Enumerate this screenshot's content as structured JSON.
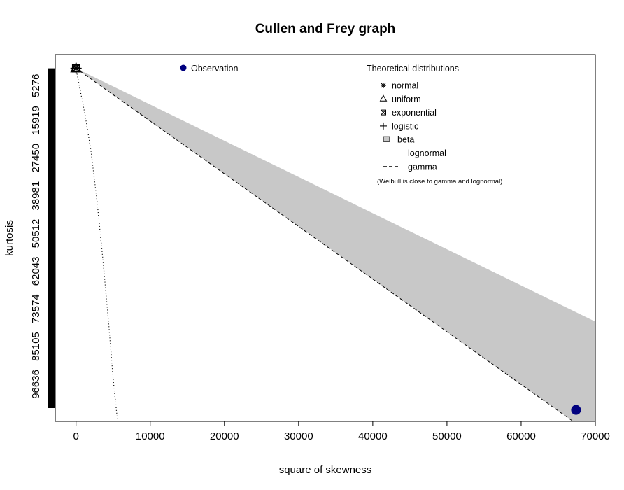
{
  "chart_data": {
    "type": "scatter",
    "title": "Cullen and Frey graph",
    "xlabel": "square of skewness",
    "ylabel": "kurtosis",
    "xlim": [
      -2800,
      70000
    ],
    "ylim": [
      -4200,
      108000
    ],
    "y_reversed": true,
    "x_ticks": [
      0,
      10000,
      20000,
      30000,
      40000,
      50000,
      60000,
      70000
    ],
    "x_tick_labels": [
      "0",
      "10000",
      "20000",
      "30000",
      "40000",
      "50000",
      "60000",
      "70000"
    ],
    "y_ticks": [
      5276,
      15919,
      27450,
      38981,
      50512,
      62043,
      73574,
      85105,
      96636
    ],
    "y_tick_labels": [
      "5276",
      "15919",
      "27450",
      "38981",
      "50512",
      "62043",
      "73574",
      "85105",
      "96636"
    ],
    "observation": {
      "x": 67400,
      "y": 104500,
      "color": "#00007f"
    },
    "bootstrap_band": {
      "x": 0,
      "y_from": 0,
      "y_to": 108000
    },
    "theoretical_points": [
      {
        "name": "normal",
        "x": 0,
        "y": 0
      },
      {
        "name": "uniform",
        "x": 0,
        "y": 0
      },
      {
        "name": "exponential",
        "x": 0,
        "y": 0
      },
      {
        "name": "logistic",
        "x": 0,
        "y": 0
      }
    ],
    "beta_region": {
      "color": "#c8c8c8",
      "polygon": [
        [
          0,
          0
        ],
        [
          70000,
          77500
        ],
        [
          70000,
          108000
        ],
        [
          67000,
          108000
        ]
      ]
    },
    "gamma_line": [
      [
        0,
        0
      ],
      [
        67000,
        108000
      ]
    ],
    "lognormal_curve": [
      [
        0,
        0
      ],
      [
        500,
        6000
      ],
      [
        1200,
        14000
      ],
      [
        2000,
        25000
      ],
      [
        2800,
        40000
      ],
      [
        3600,
        58000
      ],
      [
        4400,
        78000
      ],
      [
        5000,
        95000
      ],
      [
        5600,
        108000
      ]
    ],
    "legend_observation": {
      "label": "Observation",
      "position": "top-left"
    },
    "legend_theoretical": {
      "title": "Theoretical distributions",
      "position": "top-right",
      "items": [
        {
          "label": "normal",
          "symbol": "asterisk"
        },
        {
          "label": "uniform",
          "symbol": "triangle"
        },
        {
          "label": "exponential",
          "symbol": "boxed-x"
        },
        {
          "label": "logistic",
          "symbol": "plus"
        },
        {
          "label": "beta",
          "symbol": "gray-box"
        },
        {
          "label": "lognormal",
          "symbol": "dotted-line"
        },
        {
          "label": "gamma",
          "symbol": "dashed-line"
        }
      ],
      "note": "(Weibull is close to gamma and lognormal)"
    }
  }
}
